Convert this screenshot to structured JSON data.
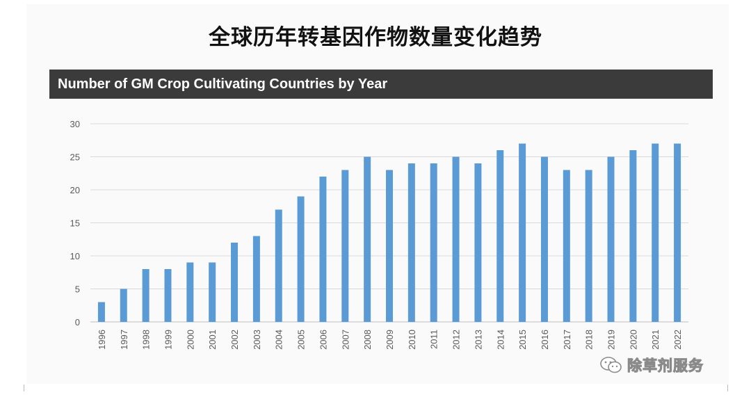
{
  "page": {
    "title": "全球历年转基因作物数量变化趋势",
    "header": "Number of GM Crop Cultivating Countries by Year",
    "watermark": "除草剂服务",
    "icon": "wechat-icon"
  },
  "colors": {
    "bar": "#5b9bd5",
    "header_bg": "#3b3b3b",
    "grid": "#d9d9d9",
    "axis_text": "#595959"
  },
  "chart_data": {
    "type": "bar",
    "title": "Number of GM Crop Cultivating Countries by Year",
    "xlabel": "",
    "ylabel": "",
    "categories": [
      "1996",
      "1997",
      "1998",
      "1999",
      "2000",
      "2001",
      "2002",
      "2003",
      "2004",
      "2005",
      "2006",
      "2007",
      "2008",
      "2009",
      "2010",
      "2011",
      "2012",
      "2013",
      "2014",
      "2015",
      "2016",
      "2017",
      "2018",
      "2019",
      "2020",
      "2021",
      "2022"
    ],
    "values": [
      3,
      5,
      8,
      8,
      9,
      9,
      12,
      13,
      17,
      19,
      22,
      23,
      25,
      23,
      24,
      24,
      25,
      24,
      26,
      27,
      25,
      23,
      23,
      25,
      26,
      27,
      27
    ],
    "ylim": [
      0,
      30
    ],
    "yticks": [
      0,
      5,
      10,
      15,
      20,
      25,
      30
    ],
    "grid": true,
    "legend": "none"
  }
}
